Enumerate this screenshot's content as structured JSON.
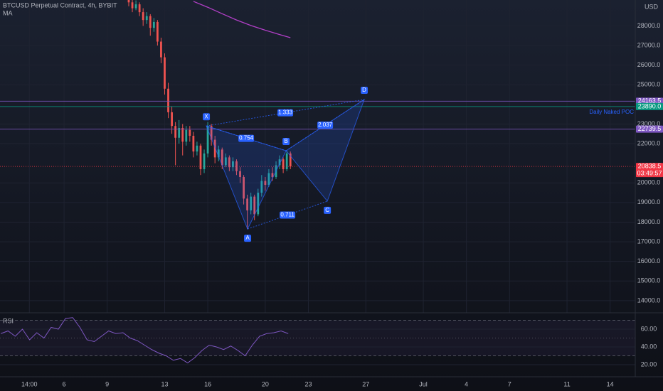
{
  "header": {
    "symbol": "BTCUSD Perpetual Contract, 4h, BYBIT",
    "currency": "USD"
  },
  "chart_data": [
    {
      "type": "candlestick",
      "xlim": [
        1.54,
        45.75
      ],
      "xticks": [
        {
          "value": 3.583,
          "label": "14:00"
        },
        6,
        9,
        13,
        16,
        20,
        23,
        27,
        {
          "value": 31,
          "label": "Jul"
        },
        {
          "value": 34,
          "label": "4"
        },
        {
          "value": 37,
          "label": "7"
        },
        {
          "value": 41,
          "label": "11"
        },
        {
          "value": 44,
          "label": "14"
        }
      ],
      "ylim": [
        13380,
        29320
      ],
      "yticks": [
        {
          "value": 28000,
          "label": "28000.0"
        },
        {
          "value": 27000,
          "label": "27000.0"
        },
        {
          "value": 26000,
          "label": "26000.0"
        },
        {
          "value": 25000,
          "label": "25000.0"
        },
        {
          "value": 23000,
          "label": "23000.0"
        },
        {
          "value": 22000,
          "label": "22000.0"
        },
        {
          "value": 20000,
          "label": "20000.0"
        },
        {
          "value": 19000,
          "label": "19000.0"
        },
        {
          "value": 18000,
          "label": "18000.0"
        },
        {
          "value": 17000,
          "label": "17000.0"
        },
        {
          "value": 16000,
          "label": "16000.0"
        },
        {
          "value": 15000,
          "label": "15000.0"
        },
        {
          "value": 14000,
          "label": "14000.0"
        }
      ],
      "up_color": "#26a69a",
      "down_color": "#ef5350",
      "x": [
        10.5,
        10.75,
        11,
        11.25,
        11.5,
        11.75,
        12,
        12.25,
        12.5,
        12.75,
        13,
        13.25,
        13.5,
        13.75,
        14,
        14.25,
        14.5,
        14.75,
        15,
        15.25,
        15.5,
        15.75,
        16,
        16.25,
        16.5,
        16.75,
        17,
        17.25,
        17.5,
        17.75,
        18,
        18.25,
        18.5,
        18.75,
        19,
        19.25,
        19.5,
        19.75,
        20,
        20.25,
        20.5,
        20.75,
        21,
        21.25,
        21.5,
        21.75
      ],
      "open": [
        29400,
        29200,
        28900,
        29100,
        28700,
        28300,
        28500,
        27900,
        28200,
        27200,
        26400,
        24800,
        23600,
        22900,
        22300,
        22800,
        22100,
        22700,
        22400,
        21600,
        21900,
        20700,
        21500,
        22900,
        22200,
        21300,
        21700,
        20900,
        21300,
        20800,
        21100,
        20600,
        20300,
        19200,
        18600,
        19300,
        18400,
        19500,
        20100,
        19900,
        20500,
        20300,
        20900,
        21200,
        20700,
        21500
      ],
      "high": [
        29650,
        29400,
        29300,
        29200,
        28900,
        28700,
        28600,
        28400,
        28300,
        27400,
        26600,
        25100,
        23900,
        23100,
        23200,
        23000,
        22900,
        22900,
        22600,
        22100,
        22000,
        21700,
        23100,
        23000,
        22400,
        21900,
        21800,
        21500,
        21400,
        21300,
        21200,
        20800,
        20400,
        19400,
        19500,
        19400,
        19700,
        20400,
        20300,
        20700,
        20800,
        21100,
        21400,
        21300,
        21650,
        21600
      ],
      "low": [
        29000,
        28700,
        28800,
        28500,
        28000,
        28100,
        27500,
        27700,
        27000,
        26100,
        24500,
        23300,
        22500,
        20900,
        22000,
        21400,
        21900,
        22100,
        21300,
        21400,
        20400,
        20500,
        21300,
        21900,
        21000,
        21100,
        20700,
        20800,
        20600,
        20600,
        20400,
        20000,
        18900,
        17650,
        18400,
        18100,
        18300,
        19300,
        19600,
        19800,
        20100,
        20200,
        20700,
        20500,
        20600,
        20700
      ],
      "close": [
        29200,
        28900,
        29100,
        28700,
        28300,
        28500,
        27900,
        28200,
        27200,
        26400,
        24800,
        23600,
        22900,
        22300,
        22800,
        22100,
        22700,
        22400,
        21600,
        21900,
        20700,
        21500,
        22900,
        22200,
        21300,
        21700,
        20900,
        21300,
        20800,
        21100,
        20600,
        20300,
        19200,
        18600,
        19300,
        18400,
        19500,
        20100,
        19900,
        20500,
        20300,
        20900,
        21200,
        20700,
        21500,
        20838.5
      ],
      "ma": {
        "name": "MA",
        "color": "#b23fc7",
        "x": [
          15,
          16,
          17,
          18,
          19,
          20,
          21,
          21.75
        ],
        "values": [
          29250,
          28950,
          28620,
          28300,
          28020,
          27780,
          27560,
          27400
        ]
      },
      "levels": [
        {
          "value": 24163.5,
          "label": "24163.5",
          "color": "#7e57c2"
        },
        {
          "value": 23890,
          "label": "23890.0",
          "color": "#089981",
          "name": "Daily Naked POC"
        },
        {
          "value": 22739.5,
          "label": "22739.5",
          "color": "#7e57c2"
        },
        {
          "value": 20838.5,
          "label": "20838.5",
          "color": "#f23645",
          "countdown": "03:49:57"
        }
      ],
      "pattern": {
        "color": "#2962ff",
        "points": [
          {
            "label": "X",
            "x": 15.9,
            "y": 22900
          },
          {
            "label": "A",
            "x": 18.77,
            "y": 17650
          },
          {
            "label": "B",
            "x": 21.45,
            "y": 21640
          },
          {
            "label": "C",
            "x": 24.32,
            "y": 19070
          },
          {
            "label": "D",
            "x": 26.89,
            "y": 24250
          }
        ],
        "legs": [
          {
            "value": 1.333,
            "from": "X",
            "to": "D"
          },
          {
            "value": 0.754,
            "from": "X",
            "to": "B"
          },
          {
            "value": 2.037,
            "from": "B",
            "to": "D"
          },
          {
            "value": 0.711,
            "from": "A",
            "to": "C"
          }
        ]
      }
    },
    {
      "type": "line",
      "title": "RSI",
      "color": "#7e57c2",
      "xlim": [
        1.54,
        45.75
      ],
      "x": [
        1.6,
        2.1,
        2.6,
        3.1,
        3.6,
        4.1,
        4.6,
        5.1,
        5.6,
        6.1,
        6.6,
        7.1,
        7.6,
        8.1,
        8.6,
        9.1,
        9.6,
        10.1,
        10.6,
        11.1,
        11.6,
        12.1,
        12.6,
        13.1,
        13.6,
        14.1,
        14.6,
        15.1,
        15.6,
        16.1,
        16.6,
        17.1,
        17.6,
        18.1,
        18.6,
        19.1,
        19.6,
        20.1,
        20.6,
        21.1,
        21.6
      ],
      "values": [
        55,
        58,
        52,
        60,
        48,
        56,
        50,
        62,
        60,
        72,
        73,
        62,
        48,
        46,
        52,
        58,
        55,
        56,
        50,
        47,
        42,
        37,
        33,
        30,
        25,
        27,
        22,
        28,
        36,
        42,
        40,
        37,
        41,
        36,
        30,
        42,
        52,
        55,
        56,
        58,
        55
      ],
      "ylim": [
        6.4,
        78.4
      ],
      "yticks": [
        {
          "value": 60,
          "label": "60.00"
        },
        {
          "value": 40,
          "label": "40.00"
        },
        {
          "value": 20,
          "label": "20.00"
        }
      ],
      "levels": [
        70,
        50,
        30
      ]
    }
  ]
}
